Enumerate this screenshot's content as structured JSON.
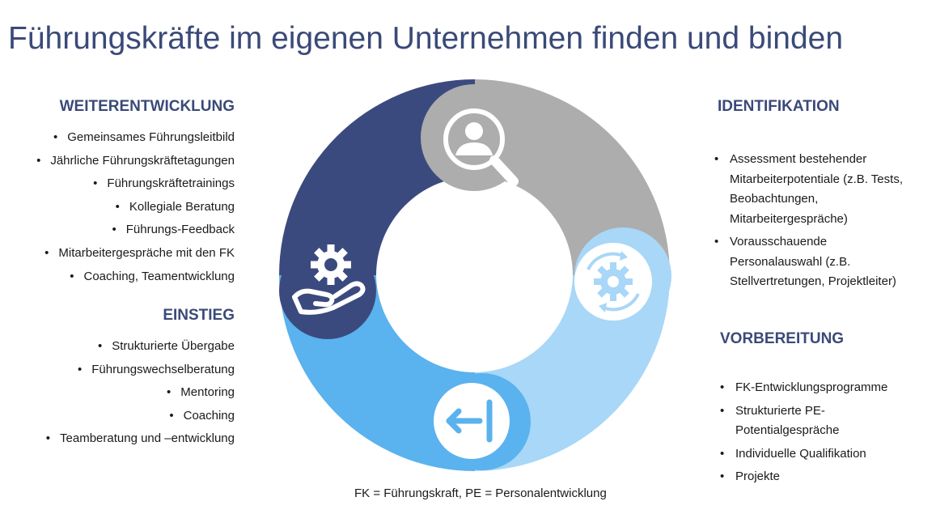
{
  "title": "Führungskräfte im eigenen Unternehmen finden und binden",
  "colors": {
    "title": "#3a4a78",
    "dark_navy": "#3b4a7e",
    "grey": "#adadad",
    "light_blue": "#a8d7f7",
    "mid_blue": "#5ab2ee"
  },
  "weiterentwicklung": {
    "heading": "WEITERENTWICKLUNG",
    "items": [
      "Gemeinsames Führungsleitbild",
      "Jährliche Führungskräftetagungen",
      "Führungskräftetrainings",
      "Kollegiale Beratung",
      "Führungs-Feedback",
      "Mitarbeitergespräche mit den FK",
      "Coaching, Teamentwicklung"
    ]
  },
  "einstieg": {
    "heading": "EINSTIEG",
    "items": [
      "Strukturierte Übergabe",
      "Führungswechselberatung",
      "Mentoring",
      "Coaching",
      "Teamberatung und –entwicklung"
    ]
  },
  "identifikation": {
    "heading": "IDENTIFIKATION",
    "items": [
      [
        "Assessment bestehender",
        "Mitarbeiterpotentiale (z.B. Tests,",
        "Beobachtungen,",
        "Mitarbeitergespräche)"
      ],
      [
        "Vorausschauende",
        "Personalauswahl (z.B.",
        "Stellvertretungen, Projektleiter)"
      ]
    ]
  },
  "vorbereitung": {
    "heading": "VORBEREITUNG",
    "items": [
      [
        "FK-Entwicklungsprogramme"
      ],
      [
        "Strukturierte PE-",
        "Potentialgespräche"
      ],
      [
        "Individuelle Qualifikation"
      ],
      [
        "Projekte"
      ]
    ]
  },
  "icons": {
    "identifikation": "person-search-icon",
    "vorbereitung": "gear-refresh-icon",
    "einstieg": "arrow-enter-icon",
    "weiterentwicklung": "hand-gear-icon"
  },
  "footnote": "FK = Führungskraft, PE = Personalentwicklung"
}
